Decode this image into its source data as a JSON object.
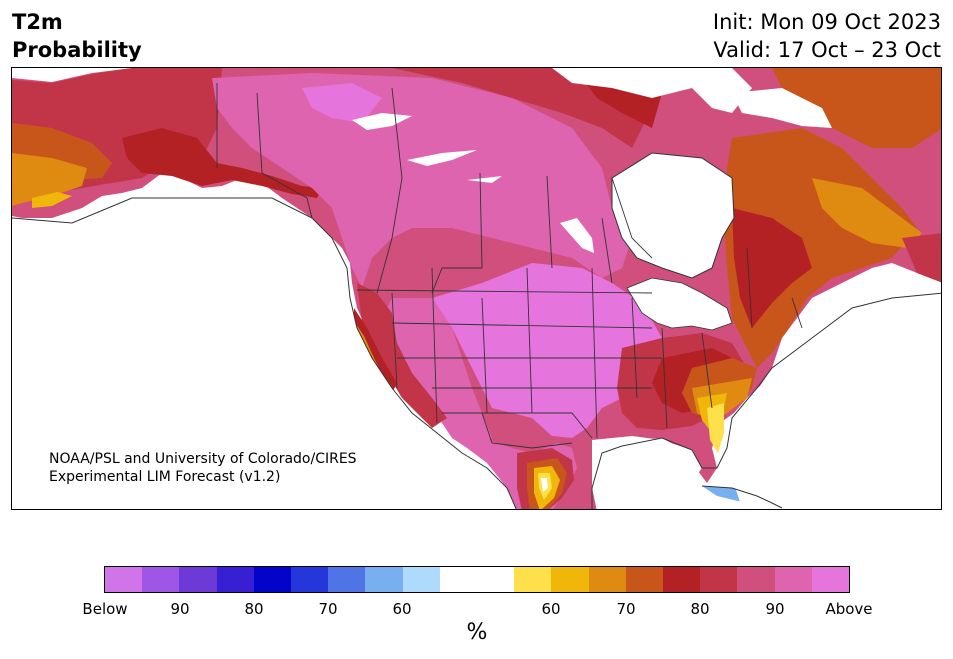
{
  "title": {
    "left_line1": "T2m",
    "left_line2": "Probability",
    "right_line1": "Init: Mon 09 Oct 2023",
    "right_line2": "Valid: 17 Oct – 23 Oct"
  },
  "credit": {
    "line1": "NOAA/PSL and University of Colorado/CIRES",
    "line2": "Experimental LIM Forecast (v1.2)"
  },
  "colorbar": {
    "unit_label": "%",
    "colors": [
      "#d174ea",
      "#9f55e6",
      "#6d3ad8",
      "#3720d4",
      "#0303c9",
      "#2537da",
      "#4f74e6",
      "#77aff0",
      "#aedbfb",
      "#ffffff",
      "#ffffff",
      "#fde04a",
      "#f1b60a",
      "#df8a10",
      "#c8561a",
      "#b32124",
      "#c23549",
      "#d04f7d",
      "#de64b0",
      "#e574dc"
    ],
    "tick_labels": [
      "Below",
      "90",
      "80",
      "70",
      "60",
      "60",
      "70",
      "80",
      "90",
      "Above"
    ]
  },
  "map_colors": {
    "above_light": "#e574dc",
    "above_90": "#de64b0",
    "above_85": "#d04f7d",
    "above_80": "#c23549",
    "above_75": "#b32124",
    "above_70": "#c8561a",
    "above_65": "#df8a10",
    "above_60": "#f1b60a",
    "above_55": "#fde04a",
    "below_60": "#aedbfb",
    "below_65": "#77aff0",
    "below_70": "#4f74e6",
    "below_80": "#0303c9",
    "border": "#333333"
  }
}
